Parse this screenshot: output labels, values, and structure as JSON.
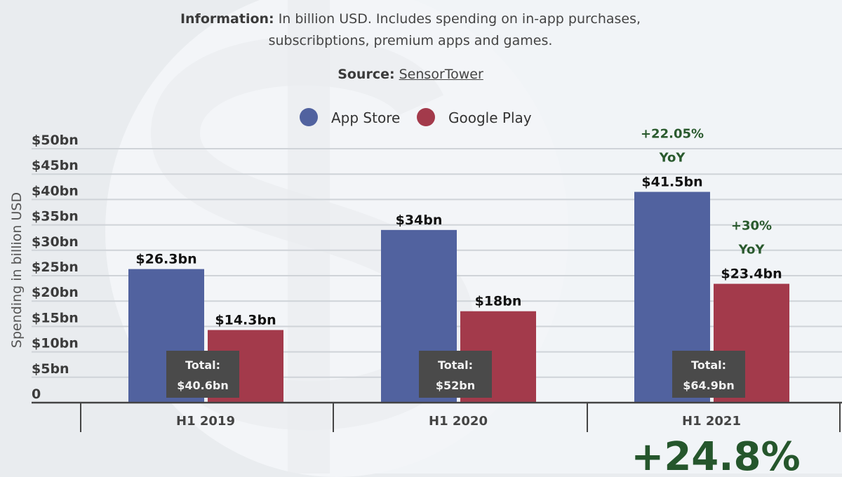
{
  "info": {
    "label": "Information:",
    "line1": "In billion USD. Includes spending on in-app purchases,",
    "line2": "subscribptions, premium apps and games.",
    "source_label": "Source:",
    "source_link": "SensorTower"
  },
  "chart_data": {
    "type": "bar",
    "ylabel": "Spending in billion USD",
    "ylim": [
      0,
      50
    ],
    "yticks": [
      {
        "value": 0,
        "label": "0"
      },
      {
        "value": 5,
        "label": "$5bn"
      },
      {
        "value": 10,
        "label": "$10bn"
      },
      {
        "value": 15,
        "label": "$15bn"
      },
      {
        "value": 20,
        "label": "$20bn"
      },
      {
        "value": 25,
        "label": "$25bn"
      },
      {
        "value": 30,
        "label": "$30bn"
      },
      {
        "value": 35,
        "label": "$35bn"
      },
      {
        "value": 40,
        "label": "$40bn"
      },
      {
        "value": 45,
        "label": "$45bn"
      },
      {
        "value": 50,
        "label": "$50bn"
      }
    ],
    "grid": true,
    "legend_position": "top-center",
    "categories": [
      "H1 2019",
      "H1 2020",
      "H1 2021"
    ],
    "series": [
      {
        "name": "App Store",
        "color": "#51629f",
        "values": [
          26.3,
          34,
          41.5
        ],
        "labels": [
          "$26.3bn",
          "$34bn",
          "$41.5bn"
        ],
        "annotations": [
          "",
          "",
          "+22.05%|YoY"
        ]
      },
      {
        "name": "Google Play",
        "color": "#a33a4b",
        "values": [
          14.3,
          18,
          23.4
        ],
        "labels": [
          "$14.3bn",
          "$18bn",
          "$23.4bn"
        ],
        "annotations": [
          "",
          "",
          "+30%|YoY"
        ]
      }
    ],
    "totals": {
      "label": "Total:",
      "values": [
        "$40.6bn",
        "$52bn",
        "$64.9bn"
      ],
      "box_color": "#4a4a4a"
    },
    "headline": {
      "text": "+24.8%",
      "color": "#25562c"
    }
  }
}
